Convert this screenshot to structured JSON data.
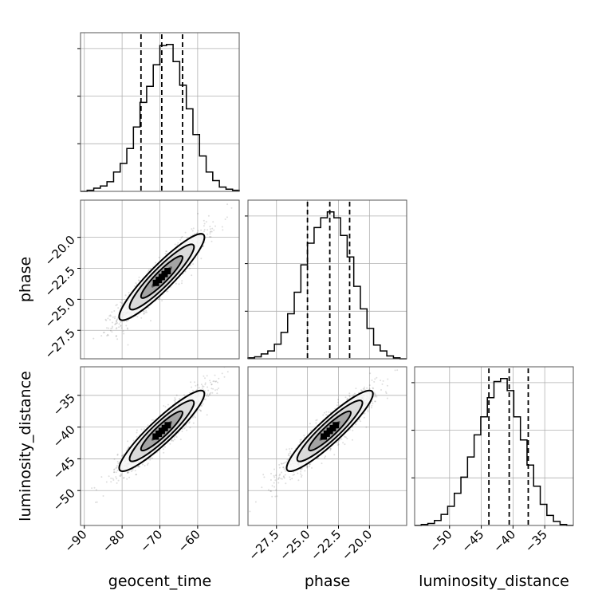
{
  "chart_data": {
    "type": "corner",
    "parameters": [
      "geocent_time",
      "phase",
      "luminosity_distance"
    ],
    "ranges": {
      "geocent_time": [
        -91,
        -49
      ],
      "phase": [
        -29.8,
        -17.0
      ],
      "luminosity_distance": [
        -55.5,
        -30.5
      ]
    },
    "ticks": {
      "geocent_time": [
        -90,
        -80,
        -70,
        -60
      ],
      "phase": [
        -27.5,
        -25.0,
        -22.5,
        -20.0
      ],
      "luminosity_distance": [
        -50,
        -45,
        -40,
        -35
      ]
    },
    "tick_labels": {
      "geocent_time": [
        "−90",
        "−80",
        "−70",
        "−60"
      ],
      "phase": [
        "−27.5",
        "−25.0",
        "−22.5",
        "−20.0"
      ],
      "luminosity_distance": [
        "−50",
        "−45",
        "−40",
        "−35"
      ]
    },
    "quantiles": {
      "geocent_time": [
        -75,
        -69.5,
        -64
      ],
      "phase": [
        -25.0,
        -23.2,
        -21.6
      ],
      "luminosity_distance": [
        -43.8,
        -40.6,
        -37.6
      ]
    },
    "histograms": {
      "geocent_time": [
        0,
        1,
        3,
        5,
        9,
        18,
        26,
        40,
        60,
        83,
        98,
        118,
        136,
        137,
        121,
        99,
        77,
        53,
        33,
        18,
        10,
        4,
        2,
        1
      ],
      "phase": [
        1,
        2,
        5,
        8,
        15,
        27,
        46,
        68,
        96,
        118,
        134,
        144,
        150,
        144,
        126,
        104,
        74,
        51,
        31,
        14,
        8,
        3,
        1,
        0
      ],
      "luminosity_distance": [
        0,
        1,
        2,
        5,
        11,
        19,
        32,
        48,
        68,
        90,
        108,
        127,
        143,
        146,
        134,
        108,
        85,
        60,
        39,
        21,
        10,
        4,
        1,
        0
      ]
    },
    "grid": true,
    "axis_labels": {
      "x": [
        "geocent_time",
        "phase",
        "luminosity_distance"
      ],
      "y": [
        "phase",
        "luminosity_distance"
      ]
    }
  }
}
